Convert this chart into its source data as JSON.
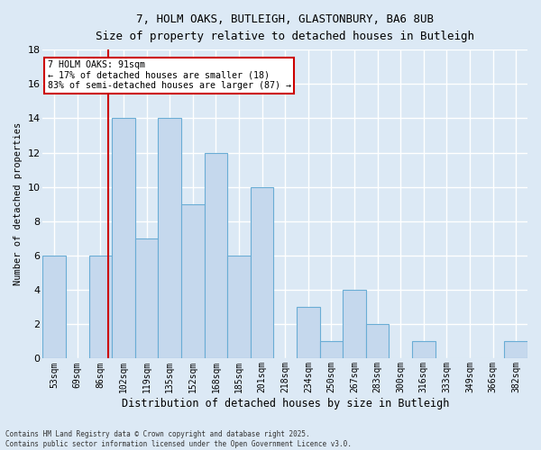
{
  "title_line1": "7, HOLM OAKS, BUTLEIGH, GLASTONBURY, BA6 8UB",
  "title_line2": "Size of property relative to detached houses in Butleigh",
  "xlabel": "Distribution of detached houses by size in Butleigh",
  "ylabel": "Number of detached properties",
  "footer_line1": "Contains HM Land Registry data © Crown copyright and database right 2025.",
  "footer_line2": "Contains public sector information licensed under the Open Government Licence v3.0.",
  "categories": [
    "53sqm",
    "69sqm",
    "86sqm",
    "102sqm",
    "119sqm",
    "135sqm",
    "152sqm",
    "168sqm",
    "185sqm",
    "201sqm",
    "218sqm",
    "234sqm",
    "250sqm",
    "267sqm",
    "283sqm",
    "300sqm",
    "316sqm",
    "333sqm",
    "349sqm",
    "366sqm",
    "382sqm"
  ],
  "values": [
    6,
    0,
    6,
    14,
    7,
    14,
    9,
    12,
    6,
    10,
    0,
    3,
    1,
    4,
    2,
    0,
    1,
    0,
    0,
    0,
    1
  ],
  "bar_color": "#c5d8ed",
  "bar_edge_color": "#6aadd5",
  "background_color": "#dce9f5",
  "grid_color": "#ffffff",
  "vline_x": 2.33,
  "vline_color": "#cc0000",
  "annotation_text": "7 HOLM OAKS: 91sqm\n← 17% of detached houses are smaller (18)\n83% of semi-detached houses are larger (87) →",
  "annotation_box_color": "#ffffff",
  "annotation_box_edge_color": "#cc0000",
  "ylim": [
    0,
    18
  ],
  "yticks": [
    0,
    2,
    4,
    6,
    8,
    10,
    12,
    14,
    16,
    18
  ]
}
